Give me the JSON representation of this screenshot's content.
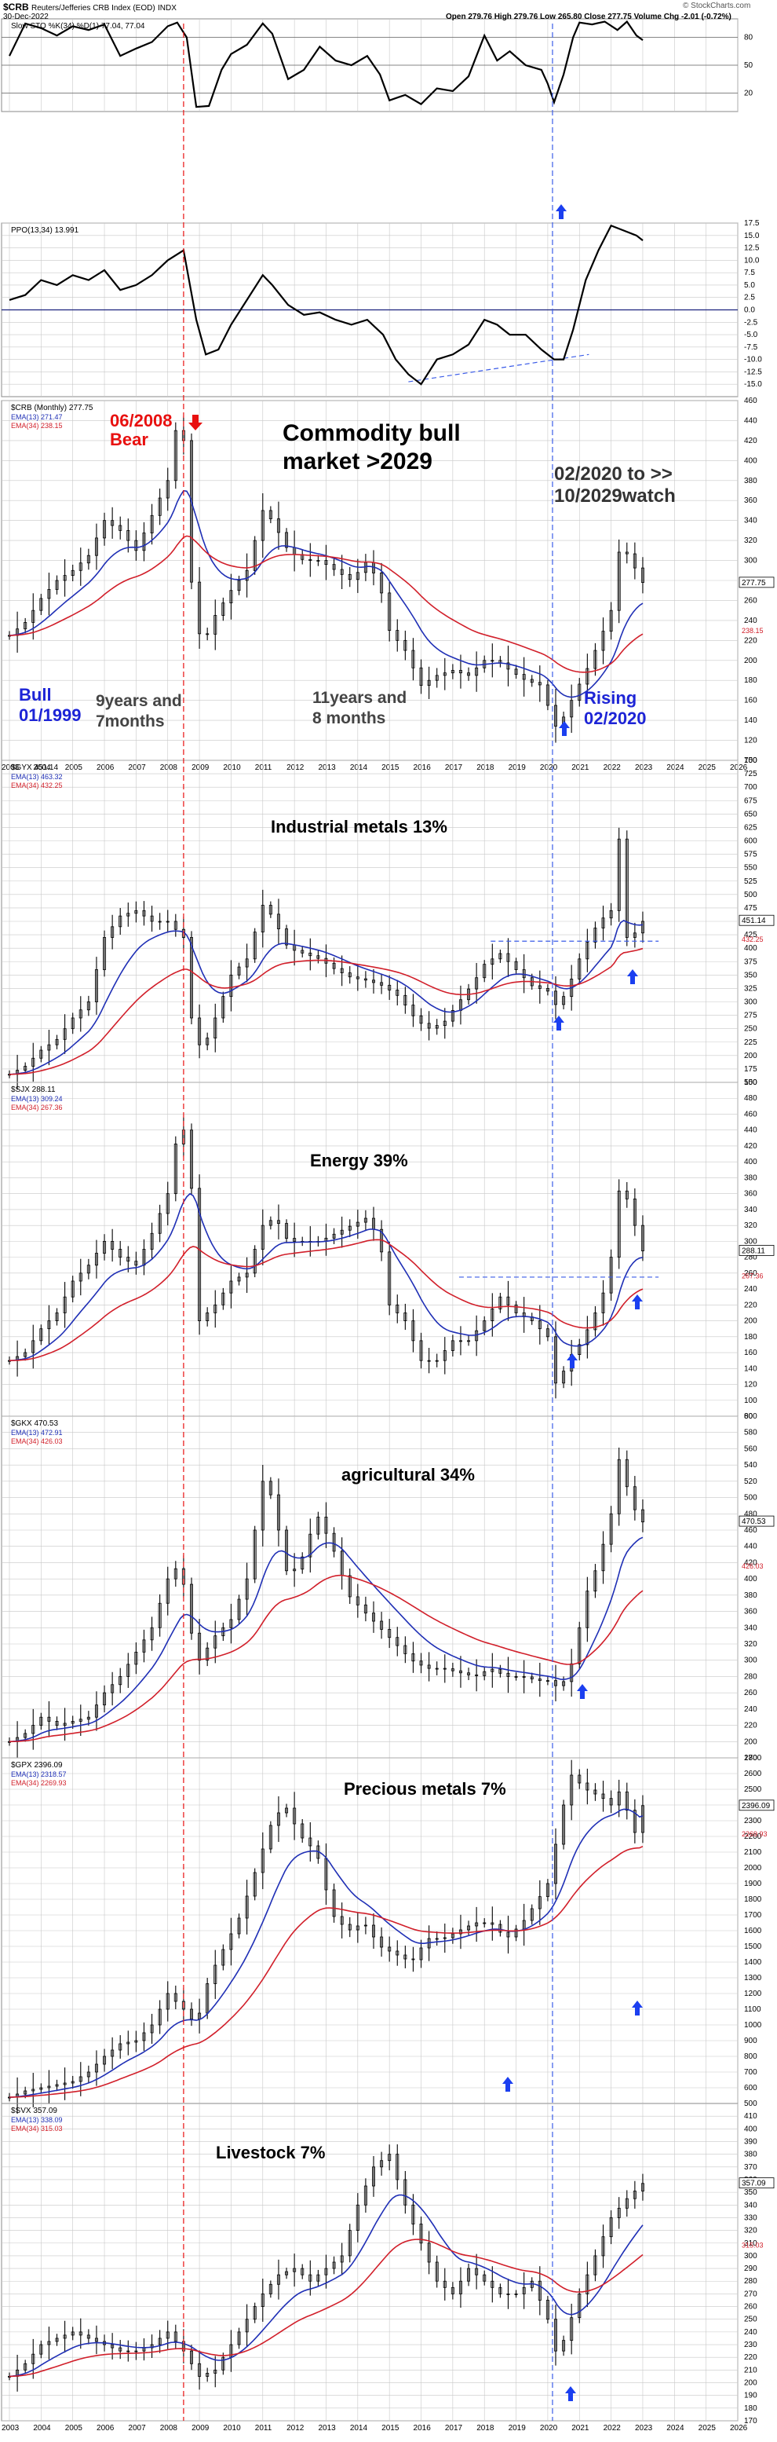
{
  "header": {
    "symbol": "$CRB",
    "name": "Reuters/Jefferies CRB Index (EOD)",
    "exchange": "INDX",
    "date": "30-Dec-2022",
    "stats": "Open 279.76  High 279.76  Low 265.80  Close 277.75  Volume  Chg -2.01 (-0.72%)",
    "brand": "© StockCharts.com"
  },
  "colors": {
    "blue_line": "#1f2fb5",
    "red_line": "#d11f2a",
    "annot_red": "#e8100f",
    "annot_blue": "#1d24d6",
    "arrow_blue": "#1b3ff0",
    "grid": "#c8c8c8"
  },
  "x_axis_years": [
    "2003",
    "2004",
    "2005",
    "2006",
    "2007",
    "2008",
    "2009",
    "2010",
    "2011",
    "2012",
    "2013",
    "2014",
    "2015",
    "2016",
    "2017",
    "2018",
    "2019",
    "2020",
    "2021",
    "2022",
    "2023",
    "2024",
    "2025",
    "2026"
  ],
  "annotations": {
    "bear": [
      "06/2008",
      "Bear"
    ],
    "headline": [
      "Commodity bull",
      "market >2029"
    ],
    "watch": [
      "02/2020 to >>",
      "10/2029watch"
    ],
    "bull": [
      "Bull",
      "01/1999"
    ],
    "duration1": [
      "9years and",
      "7months"
    ],
    "duration2": [
      "11years and",
      "8 months"
    ],
    "rising": [
      "Rising",
      "02/2020"
    ]
  },
  "chart_data": [
    {
      "type": "line",
      "label": "Slow STO %K(34) %D(1) 77.04, 77.04",
      "last_value": "77.04",
      "ylim": [
        0,
        100
      ],
      "y_ticks": [
        "80",
        "50",
        "20"
      ],
      "x": [
        2003,
        2003.5,
        2004,
        2004.5,
        2005,
        2005.5,
        2006,
        2006.5,
        2007,
        2007.5,
        2008,
        2008.3,
        2008.6,
        2008.9,
        2009.3,
        2009.7,
        2010,
        2010.5,
        2011,
        2011.3,
        2011.8,
        2012.3,
        2012.8,
        2013.3,
        2013.8,
        2014.3,
        2014.7,
        2015,
        2015.5,
        2016,
        2016.5,
        2017,
        2017.5,
        2018,
        2018.4,
        2018.8,
        2019.3,
        2019.8,
        2020,
        2020.2,
        2020.5,
        2020.8,
        2021,
        2021.4,
        2021.8,
        2022.2,
        2022.5,
        2022.8,
        2023
      ],
      "y": [
        60,
        95,
        90,
        82,
        92,
        88,
        94,
        60,
        68,
        75,
        92,
        96,
        80,
        5,
        6,
        45,
        62,
        72,
        95,
        84,
        35,
        45,
        70,
        55,
        50,
        60,
        40,
        12,
        18,
        8,
        25,
        22,
        38,
        82,
        55,
        65,
        50,
        45,
        30,
        10,
        40,
        80,
        96,
        94,
        97,
        88,
        97,
        82,
        77
      ]
    },
    {
      "type": "line",
      "label": "PPO(13,34) 13.991",
      "last_value": "13.99",
      "ylim": [
        -17.5,
        17.5
      ],
      "y_ticks": [
        "17.5",
        "15.0",
        "12.5",
        "10.0",
        "7.5",
        "5.0",
        "2.5",
        "0.0",
        "-2.5",
        "-5.0",
        "-7.5",
        "-10.0",
        "-12.5",
        "-15.0"
      ],
      "x": [
        2003,
        2003.5,
        2004,
        2004.5,
        2005,
        2005.5,
        2006,
        2006.5,
        2007,
        2007.5,
        2008,
        2008.5,
        2008.9,
        2009.2,
        2009.6,
        2010,
        2010.5,
        2011,
        2011.3,
        2011.8,
        2012.3,
        2012.8,
        2013.3,
        2013.8,
        2014.3,
        2014.8,
        2015.2,
        2015.6,
        2016,
        2016.5,
        2017,
        2017.5,
        2018,
        2018.4,
        2018.8,
        2019.3,
        2019.8,
        2020.2,
        2020.5,
        2020.8,
        2021.2,
        2021.6,
        2022,
        2022.4,
        2022.8,
        2023
      ],
      "y": [
        2,
        3,
        6,
        5,
        7,
        6,
        8,
        4,
        5,
        7,
        10,
        12,
        -2,
        -9,
        -8,
        -3,
        2,
        7,
        5,
        1,
        -1,
        -0.5,
        -2,
        -3,
        -2,
        -5,
        -10,
        -13,
        -15,
        -10,
        -9,
        -7,
        -2,
        -3,
        -5,
        -5,
        -8,
        -10,
        -10,
        -4,
        6,
        12,
        17,
        16,
        15,
        14
      ]
    },
    {
      "type": "candlestick",
      "label": "$CRB (Monthly) 277.75",
      "legend": [
        "EMA(13) 271.47",
        "EMA(34) 238.15"
      ],
      "last_value": "277.75",
      "ema_fast_value": "238.15",
      "ylim": [
        100,
        460
      ],
      "y_ticks": [
        "460",
        "440",
        "420",
        "400",
        "380",
        "360",
        "340",
        "320",
        "300",
        "280",
        "260",
        "240",
        "220",
        "200",
        "180",
        "160",
        "140",
        "120",
        "100"
      ],
      "x": [
        2003,
        2003.5,
        2004,
        2004.5,
        2005,
        2005.5,
        2006,
        2006.5,
        2007,
        2007.5,
        2008,
        2008.3,
        2008.5,
        2008.8,
        2009.1,
        2009.5,
        2010,
        2010.5,
        2011,
        2011.3,
        2011.8,
        2012.3,
        2012.8,
        2013.3,
        2013.8,
        2014.3,
        2014.7,
        2015,
        2015.5,
        2016,
        2016.5,
        2017,
        2017.5,
        2018,
        2018.4,
        2018.8,
        2019.3,
        2019.8,
        2020,
        2020.3,
        2020.6,
        2020.9,
        2021.3,
        2021.7,
        2022,
        2022.3,
        2022.6,
        2022.9,
        2023
      ],
      "y": [
        225,
        238,
        262,
        280,
        290,
        305,
        340,
        330,
        310,
        345,
        380,
        440,
        420,
        250,
        215,
        245,
        270,
        290,
        350,
        340,
        310,
        300,
        300,
        290,
        280,
        300,
        275,
        230,
        210,
        175,
        185,
        190,
        185,
        200,
        200,
        190,
        180,
        175,
        155,
        130,
        150,
        170,
        195,
        225,
        250,
        320,
        300,
        285,
        278
      ]
    },
    {
      "type": "candlestick",
      "label": "$GYX 451.14",
      "legend": [
        "EMA(13) 463.32",
        "EMA(34) 432.25"
      ],
      "caption": "Industrial metals 13%",
      "last_value": "451.14",
      "ema_fast_value": "432.25",
      "ylim": [
        150,
        750
      ],
      "y_ticks": [
        "750",
        "725",
        "700",
        "675",
        "650",
        "625",
        "600",
        "575",
        "550",
        "525",
        "500",
        "475",
        "450",
        "425",
        "400",
        "375",
        "350",
        "325",
        "300",
        "275",
        "250",
        "225",
        "200",
        "175",
        "150"
      ],
      "x": [
        2003,
        2003.5,
        2004,
        2004.5,
        2005,
        2005.5,
        2006,
        2006.5,
        2007,
        2007.5,
        2008,
        2008.5,
        2008.8,
        2009.1,
        2009.5,
        2010,
        2010.5,
        2011,
        2011.3,
        2011.8,
        2012.3,
        2012.8,
        2013.3,
        2013.8,
        2014.3,
        2014.8,
        2015.3,
        2015.8,
        2016.2,
        2016.7,
        2017.2,
        2017.7,
        2018,
        2018.5,
        2019,
        2019.5,
        2020,
        2020.3,
        2020.6,
        2021,
        2021.4,
        2021.8,
        2022,
        2022.2,
        2022.5,
        2022.8,
        2023
      ],
      "y": [
        165,
        180,
        210,
        230,
        270,
        300,
        420,
        460,
        470,
        450,
        450,
        420,
        240,
        210,
        270,
        350,
        380,
        480,
        460,
        400,
        390,
        380,
        360,
        345,
        340,
        330,
        310,
        270,
        250,
        260,
        300,
        340,
        370,
        390,
        360,
        330,
        320,
        290,
        320,
        380,
        430,
        460,
        470,
        640,
        420,
        430,
        450
      ]
    },
    {
      "type": "candlestick",
      "label": "$SJX 288.11",
      "legend": [
        "EMA(13) 309.24",
        "EMA(34) 267.36"
      ],
      "caption": "Energy 39%",
      "last_value": "288.11",
      "ema_fast_value": "267.36",
      "ylim": [
        80,
        500
      ],
      "y_ticks": [
        "500",
        "480",
        "460",
        "440",
        "420",
        "400",
        "380",
        "360",
        "340",
        "320",
        "300",
        "280",
        "260",
        "240",
        "220",
        "200",
        "180",
        "160",
        "140",
        "120",
        "100",
        "80"
      ],
      "x": [
        2003,
        2003.5,
        2004,
        2004.5,
        2005,
        2005.5,
        2006,
        2006.5,
        2007,
        2007.5,
        2008,
        2008.4,
        2008.7,
        2009,
        2009.5,
        2010,
        2010.5,
        2011,
        2011.4,
        2011.8,
        2012.3,
        2012.8,
        2013.3,
        2013.8,
        2014.3,
        2014.7,
        2015,
        2015.5,
        2016,
        2016.5,
        2017,
        2017.5,
        2018,
        2018.5,
        2019,
        2019.5,
        2020,
        2020.3,
        2020.6,
        2021,
        2021.4,
        2021.8,
        2022,
        2022.3,
        2022.6,
        2022.9,
        2023
      ],
      "y": [
        150,
        160,
        190,
        210,
        250,
        270,
        300,
        280,
        270,
        310,
        360,
        460,
        400,
        200,
        220,
        250,
        260,
        320,
        330,
        300,
        300,
        300,
        310,
        320,
        330,
        300,
        220,
        200,
        150,
        150,
        175,
        175,
        200,
        230,
        210,
        200,
        180,
        110,
        150,
        170,
        200,
        240,
        280,
        380,
        340,
        300,
        288
      ]
    },
    {
      "type": "candlestick",
      "label": "$GKX 470.53",
      "legend": [
        "EMA(13) 472.91",
        "EMA(34) 426.03"
      ],
      "caption": "agricultural 34%",
      "last_value": "470.53",
      "ema_fast_value": "426.03",
      "ylim": [
        180,
        600
      ],
      "y_ticks": [
        "600",
        "580",
        "560",
        "540",
        "520",
        "500",
        "480",
        "460",
        "440",
        "420",
        "400",
        "380",
        "360",
        "340",
        "320",
        "300",
        "280",
        "260",
        "240",
        "220",
        "200",
        "180"
      ],
      "x": [
        2003,
        2003.5,
        2004,
        2004.5,
        2005,
        2005.5,
        2006,
        2006.5,
        2007,
        2007.5,
        2008,
        2008.4,
        2008.7,
        2009,
        2009.5,
        2010,
        2010.5,
        2011,
        2011.3,
        2011.8,
        2012.3,
        2012.7,
        2013.2,
        2013.7,
        2014.2,
        2014.7,
        2015.2,
        2015.7,
        2016.2,
        2016.7,
        2017.2,
        2017.7,
        2018.2,
        2018.7,
        2019.2,
        2019.7,
        2020,
        2020.4,
        2020.8,
        2021.2,
        2021.6,
        2022,
        2022.3,
        2022.6,
        2022.9,
        2023
      ],
      "y": [
        200,
        210,
        230,
        220,
        225,
        230,
        260,
        280,
        310,
        340,
        400,
        420,
        340,
        300,
        330,
        350,
        400,
        520,
        500,
        400,
        430,
        480,
        440,
        380,
        360,
        340,
        320,
        300,
        290,
        290,
        285,
        280,
        290,
        280,
        280,
        275,
        275,
        265,
        300,
        380,
        420,
        480,
        560,
        490,
        480,
        470
      ]
    },
    {
      "type": "candlestick",
      "label": "$GPX 2396.09",
      "legend": [
        "EMA(13) 2318.57",
        "EMA(34) 2269.93"
      ],
      "caption": "Precious metals 7%",
      "last_value": "2396.09",
      "ema_fast_value": "2269.93",
      "ylim": [
        500,
        2700
      ],
      "y_ticks": [
        "2700",
        "2600",
        "2500",
        "2400",
        "2300",
        "2200",
        "2100",
        "2000",
        "1900",
        "1800",
        "1700",
        "1600",
        "1500",
        "1400",
        "1300",
        "1200",
        "1100",
        "1000",
        "900",
        "800",
        "700",
        "600",
        "500"
      ],
      "x": [
        2003,
        2003.5,
        2004,
        2004.5,
        2005,
        2005.5,
        2006,
        2006.5,
        2007,
        2007.5,
        2008,
        2008.5,
        2008.9,
        2009.3,
        2009.8,
        2010.3,
        2010.8,
        2011.3,
        2011.7,
        2012.2,
        2012.7,
        2013.2,
        2013.7,
        2014.2,
        2014.7,
        2015.2,
        2015.7,
        2016.2,
        2016.7,
        2017.2,
        2017.7,
        2018.2,
        2018.7,
        2019.2,
        2019.7,
        2020,
        2020.4,
        2020.7,
        2021.2,
        2021.7,
        2022,
        2022.3,
        2022.6,
        2022.9,
        2023
      ],
      "y": [
        540,
        580,
        600,
        620,
        640,
        700,
        800,
        880,
        900,
        1000,
        1200,
        1100,
        1000,
        1300,
        1500,
        1700,
        2000,
        2300,
        2400,
        2200,
        2100,
        1700,
        1600,
        1650,
        1500,
        1450,
        1400,
        1550,
        1550,
        1600,
        1650,
        1650,
        1550,
        1650,
        1800,
        1900,
        2300,
        2600,
        2500,
        2450,
        2400,
        2500,
        2300,
        2150,
        2396
      ]
    },
    {
      "type": "candlestick",
      "label": "$SVX 357.09",
      "legend": [
        "EMA(13) 338.09",
        "EMA(34) 315.03"
      ],
      "caption": "Livestock 7%",
      "last_value": "357.09",
      "ema_fast_value": "315.03",
      "ylim": [
        170,
        420
      ],
      "y_ticks": [
        "410",
        "400",
        "390",
        "380",
        "370",
        "360",
        "350",
        "340",
        "330",
        "320",
        "310",
        "300",
        "290",
        "280",
        "270",
        "260",
        "250",
        "240",
        "230",
        "220",
        "210",
        "200",
        "190",
        "180",
        "170"
      ],
      "x": [
        2003,
        2003.5,
        2004,
        2004.5,
        2005,
        2005.5,
        2006,
        2006.5,
        2007,
        2007.5,
        2008,
        2008.5,
        2009,
        2009.5,
        2010,
        2010.5,
        2011,
        2011.5,
        2012,
        2012.5,
        2013,
        2013.5,
        2014,
        2014.5,
        2015,
        2015.5,
        2016,
        2016.5,
        2017,
        2017.5,
        2018,
        2018.5,
        2019,
        2019.5,
        2020,
        2020.3,
        2020.6,
        2021,
        2021.5,
        2022,
        2022.5,
        2023
      ],
      "y": [
        205,
        215,
        230,
        235,
        240,
        235,
        230,
        225,
        225,
        230,
        240,
        225,
        205,
        210,
        230,
        250,
        270,
        285,
        290,
        280,
        290,
        300,
        340,
        370,
        380,
        340,
        310,
        280,
        270,
        290,
        280,
        270,
        270,
        280,
        250,
        220,
        240,
        270,
        300,
        330,
        345,
        357
      ]
    }
  ]
}
